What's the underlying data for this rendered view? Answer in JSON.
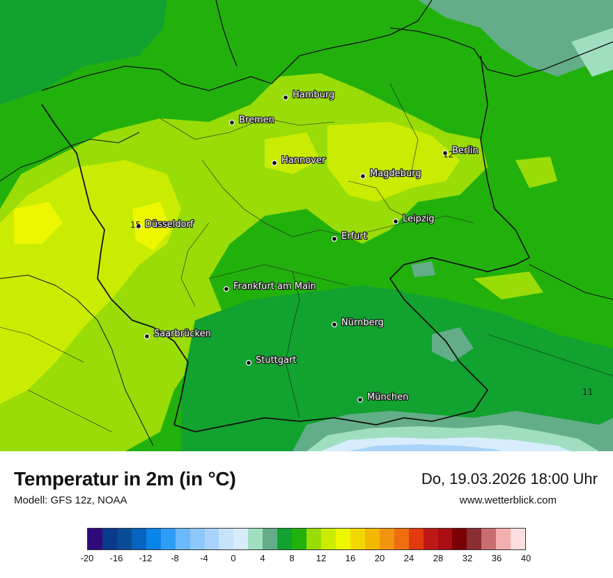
{
  "map": {
    "cities": [
      {
        "name": "Hamburg"
      },
      {
        "name": "Bremen"
      },
      {
        "name": "Hannover"
      },
      {
        "name": "Berlin"
      },
      {
        "name": "Magdeburg"
      },
      {
        "name": "Düsseldorf"
      },
      {
        "name": "Leipzig"
      },
      {
        "name": "Erfurt"
      },
      {
        "name": "Frankfurt am Main"
      },
      {
        "name": "Nürnberg"
      },
      {
        "name": "Saarbrücken"
      },
      {
        "name": "Stuttgart"
      },
      {
        "name": "München"
      }
    ],
    "isolines": [
      {
        "value": "15"
      },
      {
        "value": "12"
      },
      {
        "value": "11"
      }
    ]
  },
  "header": {
    "title": "Temperatur in 2m (in °C)",
    "model": "Modell: GFS 12z, NOAA",
    "datetime": "Do, 19.03.2026 18:00 Uhr",
    "website": "www.wetterblick.com"
  },
  "legend": {
    "ticks": [
      "-20",
      "-16",
      "-12",
      "-8",
      "-4",
      "0",
      "4",
      "8",
      "12",
      "16",
      "20",
      "24",
      "28",
      "32",
      "36",
      "40"
    ],
    "colors": [
      "#2e0a7a",
      "#0a3a8c",
      "#0a4b96",
      "#0763c0",
      "#0a84e8",
      "#2f9cf5",
      "#6bb8fb",
      "#8cc8fb",
      "#a8d4fb",
      "#c6e3fc",
      "#d7ecfc",
      "#9fdfc0",
      "#63ad88",
      "#11a22f",
      "#22b10c",
      "#99dc08",
      "#c9ec02",
      "#edf800",
      "#f2d800",
      "#f3b800",
      "#f29410",
      "#ee6e10",
      "#e23a0c",
      "#bf1616",
      "#a80e12",
      "#7a0006",
      "#8a2e32",
      "#c86e72",
      "#f3aeae",
      "#fcdede"
    ]
  }
}
